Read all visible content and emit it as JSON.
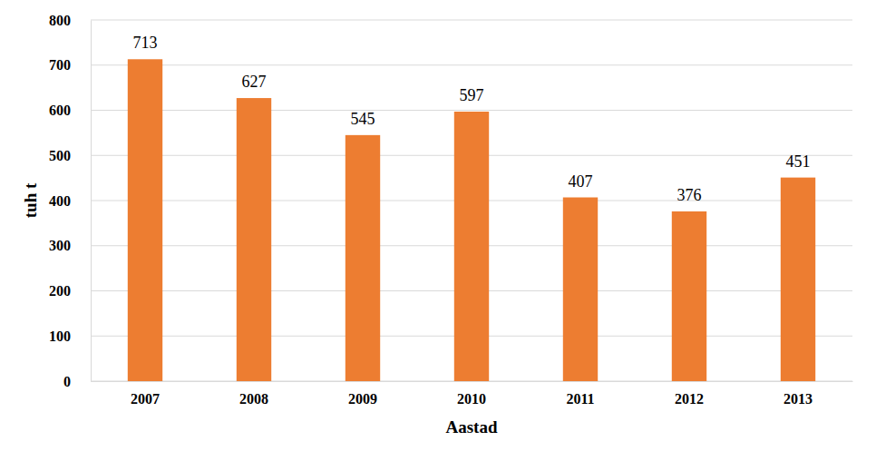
{
  "chart_data": {
    "type": "bar",
    "categories": [
      "2007",
      "2008",
      "2009",
      "2010",
      "2011",
      "2012",
      "2013"
    ],
    "values": [
      713,
      627,
      545,
      597,
      407,
      376,
      451
    ],
    "color": "#ed7d31",
    "x_label": "Aastad",
    "y_label": "tuh t",
    "ylim": [
      0,
      800
    ],
    "yticks": [
      0,
      100,
      200,
      300,
      400,
      500,
      600,
      700,
      800
    ],
    "grid": true,
    "data_labels": true
  }
}
